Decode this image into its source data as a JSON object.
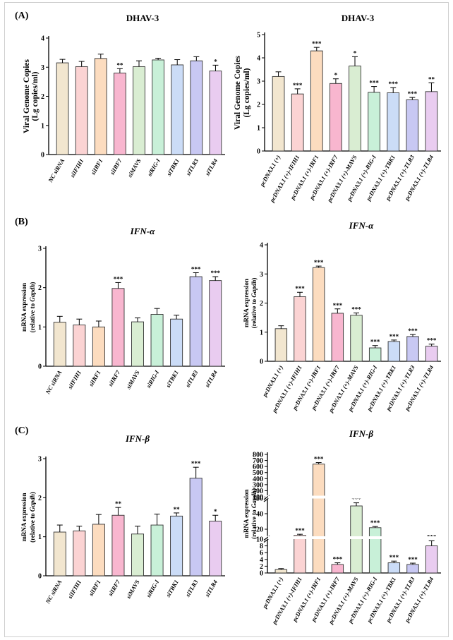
{
  "panel_labels": [
    "(A)",
    "(B)",
    "(C)"
  ],
  "colors": [
    "#f2e6cf",
    "#fbd3d3",
    "#fcdcbf",
    "#f8b6cf",
    "#d9edd2",
    "#c8f0d8",
    "#cbdcf7",
    "#c8c8f3",
    "#e9ccf0"
  ],
  "chart_data": [
    {
      "id": "A-left",
      "type": "bar",
      "panel": "(A)",
      "title": "DHAV-3",
      "title_style": "normal",
      "ylabel": "Viral Genome Copies",
      "ylabel2": "(Lg copies/ml)",
      "ylim": [
        0,
        4
      ],
      "yticks": [
        "0",
        "1",
        "2",
        "3",
        "4"
      ],
      "categories": [
        "NC siRNA",
        "siIFIH1",
        "siIRF1",
        "siIRF7",
        "siMAVS",
        "siRIG-I",
        "siTBK1",
        "siTLR3",
        "siTLR4"
      ],
      "values": [
        3.15,
        3.02,
        3.3,
        2.8,
        3.02,
        3.25,
        3.08,
        3.22,
        2.87
      ],
      "errors": [
        0.12,
        0.18,
        0.15,
        0.15,
        0.2,
        0.06,
        0.18,
        0.14,
        0.2
      ],
      "significance": [
        "",
        "",
        "",
        "**",
        "",
        "",
        "",
        "",
        "*"
      ]
    },
    {
      "id": "A-right",
      "type": "bar",
      "panel": "(A)",
      "title": "DHAV-3",
      "title_style": "normal",
      "ylabel": "Viral Genome Copies",
      "ylabel2": "(Lg copies/ml)",
      "ylim": [
        0,
        5
      ],
      "yticks": [
        "0",
        "1",
        "2",
        "3",
        "4",
        "5"
      ],
      "categories": [
        "pcDNA3.1 (+)",
        "pcDNA3.1 (+)-IFIH1",
        "pcDNA3.1 (+)-IRF1",
        "pcDNA3.1 (+)-IRF7",
        "pcDNA3.1 (+)-MAVS",
        "pcDNA3.1 (+)-RIG-I",
        "pcDNA3.1 (+)-TBK1",
        "pcDNA3.1 (+)-TLR3",
        "pcDNA3.1 (+)-TLR4"
      ],
      "values": [
        3.2,
        2.45,
        4.3,
        2.9,
        3.65,
        2.52,
        2.5,
        2.2,
        2.55
      ],
      "errors": [
        0.2,
        0.22,
        0.15,
        0.2,
        0.4,
        0.25,
        0.22,
        0.1,
        0.38
      ],
      "significance": [
        "",
        "***",
        "***",
        "*",
        "*",
        "***",
        "***",
        "***",
        "**"
      ]
    },
    {
      "id": "B-left",
      "type": "bar",
      "panel": "(B)",
      "title": "IFN-α",
      "title_style": "italic",
      "ylabel": "mRNA expression",
      "ylabel2": "(relative to Gapdh)",
      "ylim": [
        0,
        3
      ],
      "yticks": [
        "0",
        "1",
        "2",
        "3"
      ],
      "categories": [
        "NC siRNA",
        "siIFIH1",
        "siIRF1",
        "siIRF7",
        "siMAVS",
        "siRIG-I",
        "siTBK1",
        "siTLR3",
        "siTLR4"
      ],
      "values": [
        1.12,
        1.05,
        1.0,
        1.98,
        1.13,
        1.32,
        1.2,
        2.28,
        2.18
      ],
      "errors": [
        0.15,
        0.15,
        0.15,
        0.15,
        0.1,
        0.15,
        0.1,
        0.1,
        0.1
      ],
      "significance": [
        "",
        "",
        "",
        "***",
        "",
        "",
        "",
        "***",
        "***"
      ]
    },
    {
      "id": "B-right",
      "type": "bar",
      "panel": "(B)",
      "title": "IFN-α",
      "title_style": "italic",
      "ylabel": "mRNA expression",
      "ylabel2": "(relative to Gapdh)",
      "ylim": [
        0,
        4
      ],
      "yticks": [
        "0",
        "1",
        "2",
        "3",
        "4"
      ],
      "categories": [
        "pcDNA3.1 (+)",
        "pcDNA3.1 (+)-IFIH1",
        "pcDNA3.1 (+)-IRF1",
        "pcDNA3.1 (+)-IRF7",
        "pcDNA3.1 (+)-MAVS",
        "pcDNA3.1 (+)-RIG-I",
        "pcDNA3.1 (+)-TBK1",
        "pcDNA3.1 (+)-TLR3",
        "pcDNA3.1 (+)-TLR4"
      ],
      "values": [
        1.12,
        2.22,
        3.22,
        1.65,
        1.58,
        0.46,
        0.68,
        0.85,
        0.52
      ],
      "errors": [
        0.1,
        0.15,
        0.05,
        0.15,
        0.08,
        0.08,
        0.05,
        0.07,
        0.07
      ],
      "significance": [
        "",
        "***",
        "***",
        "***",
        "***",
        "***",
        "***",
        "***",
        "***"
      ]
    },
    {
      "id": "C-left",
      "type": "bar",
      "panel": "(C)",
      "title": "IFN-β",
      "title_style": "italic",
      "ylabel": "mRNA expression",
      "ylabel2": "(relative to Gapdh)",
      "ylim": [
        0,
        3
      ],
      "yticks": [
        "0",
        "1",
        "2",
        "3"
      ],
      "categories": [
        "NC siRNA",
        "siIFIH1",
        "siIRF1",
        "siIRF7",
        "siMAVS",
        "siRIG-I",
        "siTBK1",
        "siTLR3",
        "siTLR4"
      ],
      "values": [
        1.12,
        1.15,
        1.32,
        1.55,
        1.07,
        1.3,
        1.53,
        2.5,
        1.4
      ],
      "errors": [
        0.18,
        0.12,
        0.25,
        0.2,
        0.2,
        0.28,
        0.08,
        0.28,
        0.15
      ],
      "significance": [
        "",
        "",
        "",
        "**",
        "",
        "",
        "**",
        "***",
        "*"
      ]
    },
    {
      "id": "C-right",
      "type": "bar",
      "panel": "(C)",
      "title": "IFN-β",
      "title_style": "italic",
      "ylabel": "mRNA expression",
      "ylabel2": "(relative to Gapdh)",
      "axis_breaks": true,
      "yticks": [
        "0",
        "2",
        "4",
        "6",
        "8",
        "10",
        "20",
        "40",
        "60",
        "100",
        "200",
        "300",
        "400",
        "500",
        "600",
        "700",
        "800"
      ],
      "categories": [
        "pcDNA3.1 (+)",
        "pcDNA3.1 (+)-IFIH1",
        "pcDNA3.1 (+)-IRF1",
        "pcDNA3.1 (+)-IRF7",
        "pcDNA3.1 (+)-MAVS",
        "pcDNA3.1 (+)-RIG-I",
        "pcDNA3.1 (+)-TBK1",
        "pcDNA3.1 (+)-TLR3",
        "pcDNA3.1 (+)-TLR4"
      ],
      "values": [
        1,
        12,
        640,
        2.5,
        50,
        22,
        3,
        2.5,
        8
      ],
      "errors": [
        0.3,
        1.5,
        25,
        0.5,
        4,
        1.5,
        0.5,
        0.4,
        1.5
      ],
      "significance": [
        "",
        "***",
        "***",
        "***",
        "***",
        "***",
        "***",
        "***",
        "***"
      ]
    }
  ]
}
